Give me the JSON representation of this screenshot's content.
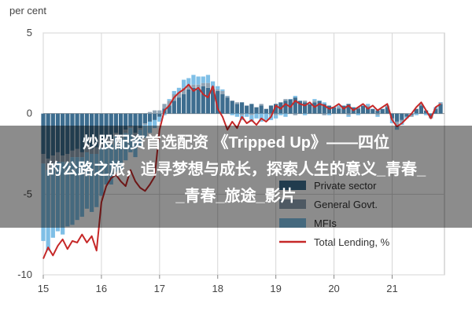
{
  "overlay": {
    "line1": "炒股配资首选配资 《Tripped Up》——四位",
    "line2": "的公路之旅，追寻梦想与成长，探索人生的意义_青春_",
    "line3": "_青春_旅途_影片"
  },
  "colors": {
    "private": "#3d6d8f",
    "general_govt": "#8fa3b4",
    "mfis": "#7fbfe6",
    "total": "#c62828",
    "grid": "#d6d6d6",
    "plot_bg": "#ffffff",
    "overlay": "#000000"
  },
  "chart_data": {
    "type": "bar",
    "stacked": true,
    "ylabel": "per cent",
    "ylim": [
      -10,
      5
    ],
    "yticks": [
      5,
      0,
      -5,
      -10
    ],
    "xticks": [
      "15",
      "16",
      "17",
      "18",
      "19",
      "20",
      "21"
    ],
    "x_start_year": 2015,
    "x_end_year": 2021.9,
    "months": [
      "2015-01",
      "2015-02",
      "2015-03",
      "2015-04",
      "2015-05",
      "2015-06",
      "2015-07",
      "2015-08",
      "2015-09",
      "2015-10",
      "2015-11",
      "2015-12",
      "2016-01",
      "2016-02",
      "2016-03",
      "2016-04",
      "2016-05",
      "2016-06",
      "2016-07",
      "2016-08",
      "2016-09",
      "2016-10",
      "2016-11",
      "2016-12",
      "2017-01",
      "2017-02",
      "2017-03",
      "2017-04",
      "2017-05",
      "2017-06",
      "2017-07",
      "2017-08",
      "2017-09",
      "2017-10",
      "2017-11",
      "2017-12",
      "2018-01",
      "2018-02",
      "2018-03",
      "2018-04",
      "2018-05",
      "2018-06",
      "2018-07",
      "2018-08",
      "2018-09",
      "2018-10",
      "2018-11",
      "2018-12",
      "2019-01",
      "2019-02",
      "2019-03",
      "2019-04",
      "2019-05",
      "2019-06",
      "2019-07",
      "2019-08",
      "2019-09",
      "2019-10",
      "2019-11",
      "2019-12",
      "2020-01",
      "2020-02",
      "2020-03",
      "2020-04",
      "2020-05",
      "2020-06",
      "2020-07",
      "2020-08",
      "2020-09",
      "2020-10",
      "2020-11",
      "2020-12",
      "2021-01",
      "2021-02",
      "2021-03",
      "2021-04",
      "2021-05",
      "2021-06",
      "2021-07",
      "2021-08",
      "2021-09",
      "2021-10",
      "2021-11"
    ],
    "series": [
      {
        "name": "Private sector",
        "values": [
          -2.5,
          -2.8,
          -2.6,
          -2.4,
          -2.6,
          -2.5,
          -2.3,
          -2.2,
          -2.4,
          -2.0,
          -2.2,
          -2.1,
          -1.8,
          -1.5,
          -1.6,
          -1.2,
          -1.4,
          -1.0,
          -0.8,
          -1.2,
          -0.9,
          -0.6,
          -0.5,
          -0.4,
          -0.2,
          0.3,
          0.5,
          0.8,
          1.0,
          1.2,
          1.5,
          1.6,
          1.5,
          1.7,
          1.6,
          1.5,
          1.4,
          1.2,
          1.0,
          0.8,
          0.6,
          0.7,
          0.5,
          0.6,
          0.4,
          0.5,
          0.3,
          0.5,
          0.6,
          0.7,
          0.8,
          0.9,
          1.0,
          0.8,
          0.7,
          0.6,
          0.7,
          0.8,
          0.6,
          0.5,
          0.4,
          0.3,
          0.5,
          0.6,
          0.4,
          0.3,
          0.5,
          0.4,
          0.3,
          0.2,
          0.3,
          0.4,
          -0.3,
          -0.5,
          -0.4,
          -0.2,
          -0.1,
          0.3,
          0.5,
          0.2,
          -0.2,
          0.3,
          0.6
        ]
      },
      {
        "name": "General Govt.",
        "values": [
          -0.6,
          -0.7,
          -0.5,
          -0.6,
          -0.4,
          -0.5,
          -0.4,
          -0.5,
          -0.3,
          -0.4,
          -0.3,
          -0.4,
          -0.3,
          -0.2,
          -0.3,
          -0.2,
          -0.1,
          -0.2,
          -0.1,
          -0.2,
          -0.1,
          -0.1,
          0.1,
          0.2,
          0.2,
          0.3,
          0.3,
          0.4,
          0.3,
          0.4,
          0.3,
          0.2,
          0.3,
          0.2,
          0.3,
          0.2,
          0.1,
          0.2,
          0.1,
          0.0,
          0.1,
          -0.1,
          0.0,
          -0.1,
          0.0,
          0.1,
          0.0,
          -0.1,
          -0.1,
          0.0,
          0.1,
          0.0,
          -0.1,
          0.0,
          0.1,
          0.0,
          0.1,
          0.0,
          -0.1,
          0.0,
          0.0,
          0.1,
          0.0,
          -0.1,
          0.0,
          0.1,
          0.0,
          0.1,
          0.0,
          -0.1,
          0.0,
          0.1,
          -0.1,
          -0.2,
          -0.1,
          0.0,
          -0.1,
          0.0,
          0.1,
          0.0,
          -0.1,
          0.0,
          0.1
        ]
      },
      {
        "name": "MFIs",
        "values": [
          -4.8,
          -5.0,
          -4.6,
          -4.3,
          -4.5,
          -4.0,
          -4.2,
          -3.9,
          -3.7,
          -3.5,
          -3.6,
          -3.3,
          -3.0,
          -2.7,
          -2.5,
          -2.2,
          -2.0,
          -1.7,
          -1.5,
          -1.3,
          -1.0,
          -0.8,
          -0.7,
          -0.5,
          -0.3,
          -0.1,
          0.1,
          0.2,
          0.3,
          0.5,
          0.4,
          0.6,
          0.5,
          0.4,
          0.5,
          0.3,
          0.2,
          0.1,
          0.0,
          -0.1,
          -0.2,
          -0.3,
          -0.2,
          -0.4,
          -0.3,
          -0.5,
          -0.4,
          -0.3,
          -0.2,
          -0.1,
          -0.2,
          0.0,
          0.1,
          0.0,
          -0.1,
          0.0,
          0.1,
          0.0,
          0.1,
          -0.1,
          0.0,
          0.1,
          0.0,
          -0.1,
          0.0,
          -0.1,
          0.0,
          0.1,
          0.0,
          -0.1,
          0.0,
          0.0,
          -0.2,
          -0.3,
          -0.2,
          -0.1,
          0.0,
          -0.1,
          0.0,
          -0.1,
          0.0,
          0.1,
          0.0
        ]
      },
      {
        "name": "Total Lending, %",
        "type": "line",
        "values": [
          -9.0,
          -8.3,
          -8.8,
          -8.2,
          -7.8,
          -8.4,
          -7.9,
          -8.0,
          -7.5,
          -8.0,
          -7.6,
          -8.5,
          -5.5,
          -4.5,
          -4.0,
          -3.8,
          -4.2,
          -4.5,
          -3.5,
          -4.2,
          -4.6,
          -4.8,
          -4.4,
          -3.9,
          -1.0,
          0.2,
          0.5,
          1.0,
          1.3,
          1.5,
          1.8,
          1.4,
          1.6,
          1.2,
          1.0,
          1.7,
          0.3,
          -0.2,
          -1.0,
          -0.5,
          -0.9,
          -0.2,
          -0.6,
          -0.4,
          -0.7,
          -0.3,
          -0.5,
          -0.2,
          0.5,
          0.3,
          0.6,
          0.4,
          0.8,
          0.6,
          0.5,
          0.7,
          0.4,
          0.6,
          0.5,
          0.3,
          0.4,
          0.6,
          0.3,
          0.5,
          0.2,
          0.4,
          0.6,
          0.3,
          0.5,
          0.2,
          0.4,
          0.6,
          -0.4,
          -0.8,
          -0.6,
          -0.3,
          0.0,
          0.4,
          0.7,
          0.2,
          -0.3,
          0.4,
          0.6
        ]
      }
    ],
    "legend": {
      "position": "bottom-right",
      "entries": [
        "Private sector",
        "General Govt.",
        "MFIs",
        "Total Lending, %"
      ]
    },
    "grid": true
  }
}
